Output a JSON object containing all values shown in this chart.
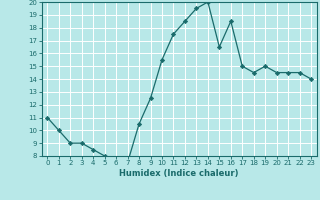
{
  "x": [
    0,
    1,
    2,
    3,
    4,
    5,
    6,
    7,
    8,
    9,
    10,
    11,
    12,
    13,
    14,
    15,
    16,
    17,
    18,
    19,
    20,
    21,
    22,
    23
  ],
  "y": [
    11,
    10,
    9,
    9,
    8.5,
    8,
    7.5,
    7.5,
    10.5,
    12.5,
    15.5,
    17.5,
    18.5,
    19.5,
    20,
    16.5,
    18.5,
    15,
    14.5,
    15,
    14.5,
    14.5,
    14.5,
    14
  ],
  "xlabel": "Humidex (Indice chaleur)",
  "ylim": [
    8,
    20
  ],
  "xlim": [
    -0.5,
    23.5
  ],
  "yticks": [
    8,
    9,
    10,
    11,
    12,
    13,
    14,
    15,
    16,
    17,
    18,
    19,
    20
  ],
  "xticks": [
    0,
    1,
    2,
    3,
    4,
    5,
    6,
    7,
    8,
    9,
    10,
    11,
    12,
    13,
    14,
    15,
    16,
    17,
    18,
    19,
    20,
    21,
    22,
    23
  ],
  "line_color": "#1a6b6b",
  "marker_color": "#1a6b6b",
  "bg_color": "#b8e8e8",
  "grid_color": "#ffffff",
  "tick_label_color": "#1a6b6b",
  "xlabel_color": "#1a6b6b",
  "spine_color": "#1a6b6b",
  "tick_fontsize": 5.0,
  "xlabel_fontsize": 6.0,
  "linewidth": 0.9,
  "markersize": 2.2
}
